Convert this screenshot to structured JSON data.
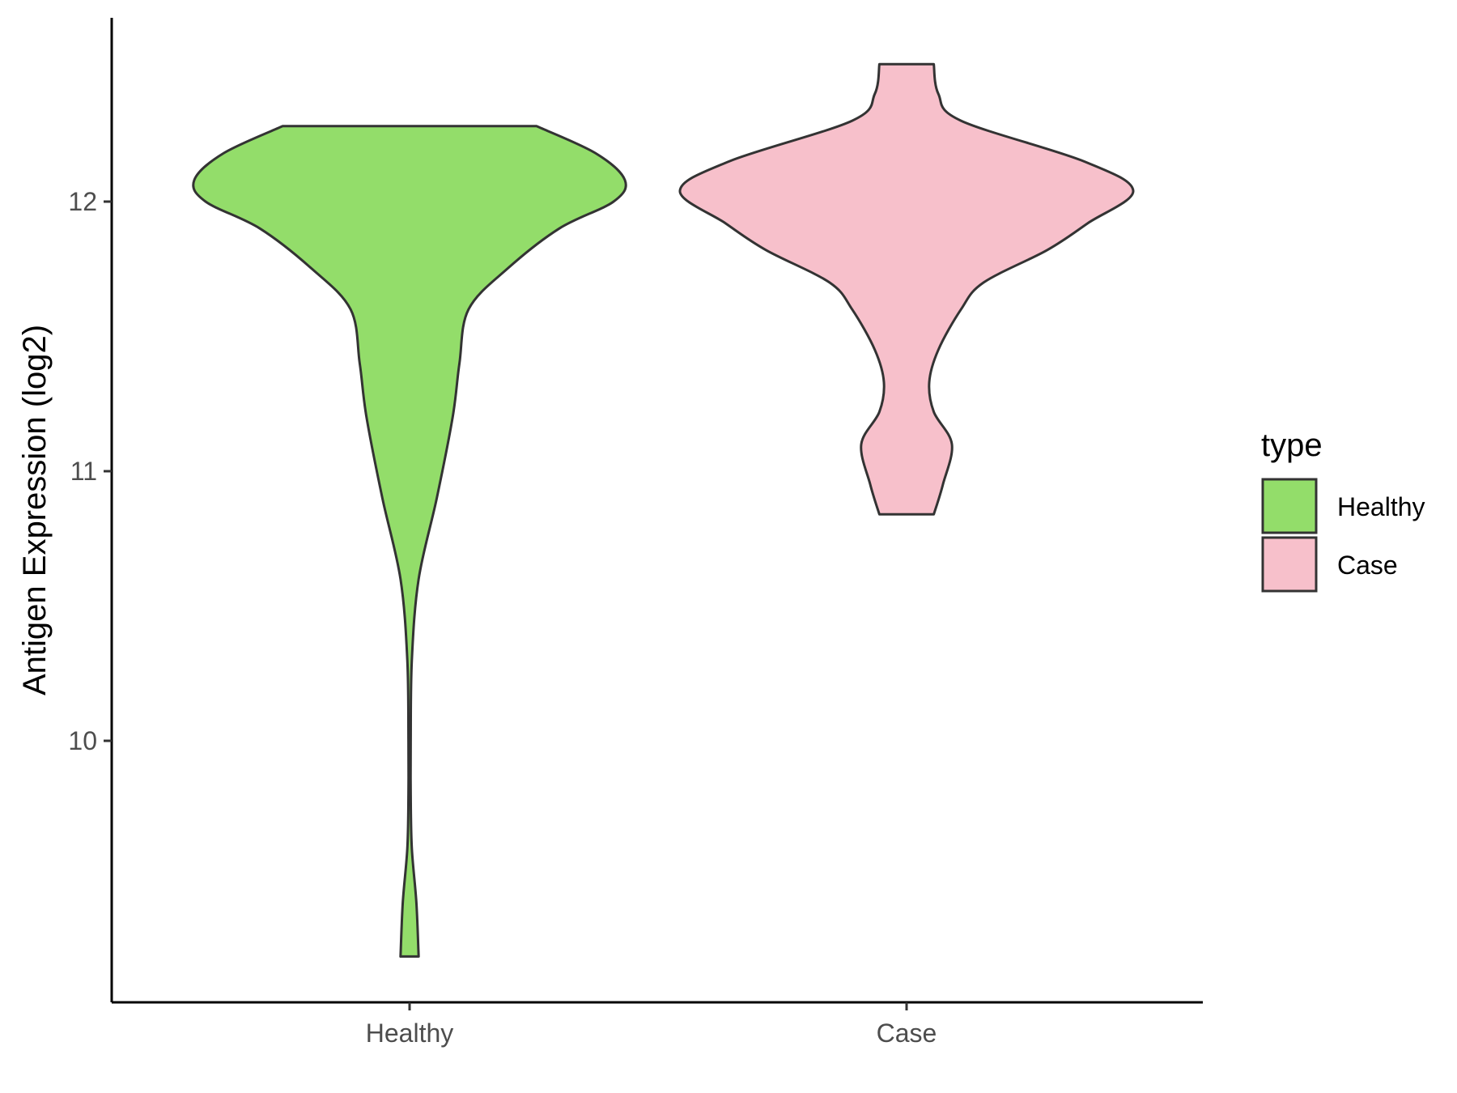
{
  "chart_data": {
    "type": "violin",
    "title": "",
    "xlabel": "",
    "ylabel": "Antigen Expression (log2)",
    "categories": [
      "Healthy",
      "Case"
    ],
    "yticks": [
      10,
      11,
      12
    ],
    "ylim": [
      9.1,
      12.7
    ],
    "grid": false,
    "legend": {
      "title": "type",
      "placement": "right",
      "entries": [
        {
          "label": "Healthy",
          "color": "#93dd6a"
        },
        {
          "label": "Case",
          "color": "#f7c0cb"
        }
      ]
    },
    "series": [
      {
        "category": "Healthy",
        "color": "#93dd6a",
        "ymin": 9.2,
        "ymax": 12.28,
        "density": [
          [
            9.2,
            0.04
          ],
          [
            9.4,
            0.03
          ],
          [
            9.6,
            0.01
          ],
          [
            9.8,
            0.005
          ],
          [
            10.0,
            0.005
          ],
          [
            10.3,
            0.01
          ],
          [
            10.6,
            0.04
          ],
          [
            10.9,
            0.12
          ],
          [
            11.2,
            0.19
          ],
          [
            11.4,
            0.22
          ],
          [
            11.6,
            0.26
          ],
          [
            11.75,
            0.43
          ],
          [
            11.9,
            0.66
          ],
          [
            12.0,
            0.9
          ],
          [
            12.08,
            0.95
          ],
          [
            12.18,
            0.82
          ],
          [
            12.28,
            0.56
          ]
        ]
      },
      {
        "category": "Case",
        "color": "#f7c0cb",
        "ymin": 10.84,
        "ymax": 12.51,
        "density": [
          [
            10.84,
            0.12
          ],
          [
            10.95,
            0.16
          ],
          [
            11.1,
            0.2
          ],
          [
            11.22,
            0.12
          ],
          [
            11.33,
            0.1
          ],
          [
            11.45,
            0.14
          ],
          [
            11.6,
            0.24
          ],
          [
            11.7,
            0.34
          ],
          [
            11.82,
            0.62
          ],
          [
            11.92,
            0.8
          ],
          [
            12.04,
            1.0
          ],
          [
            12.15,
            0.78
          ],
          [
            12.3,
            0.24
          ],
          [
            12.4,
            0.14
          ],
          [
            12.51,
            0.12
          ]
        ]
      }
    ]
  }
}
